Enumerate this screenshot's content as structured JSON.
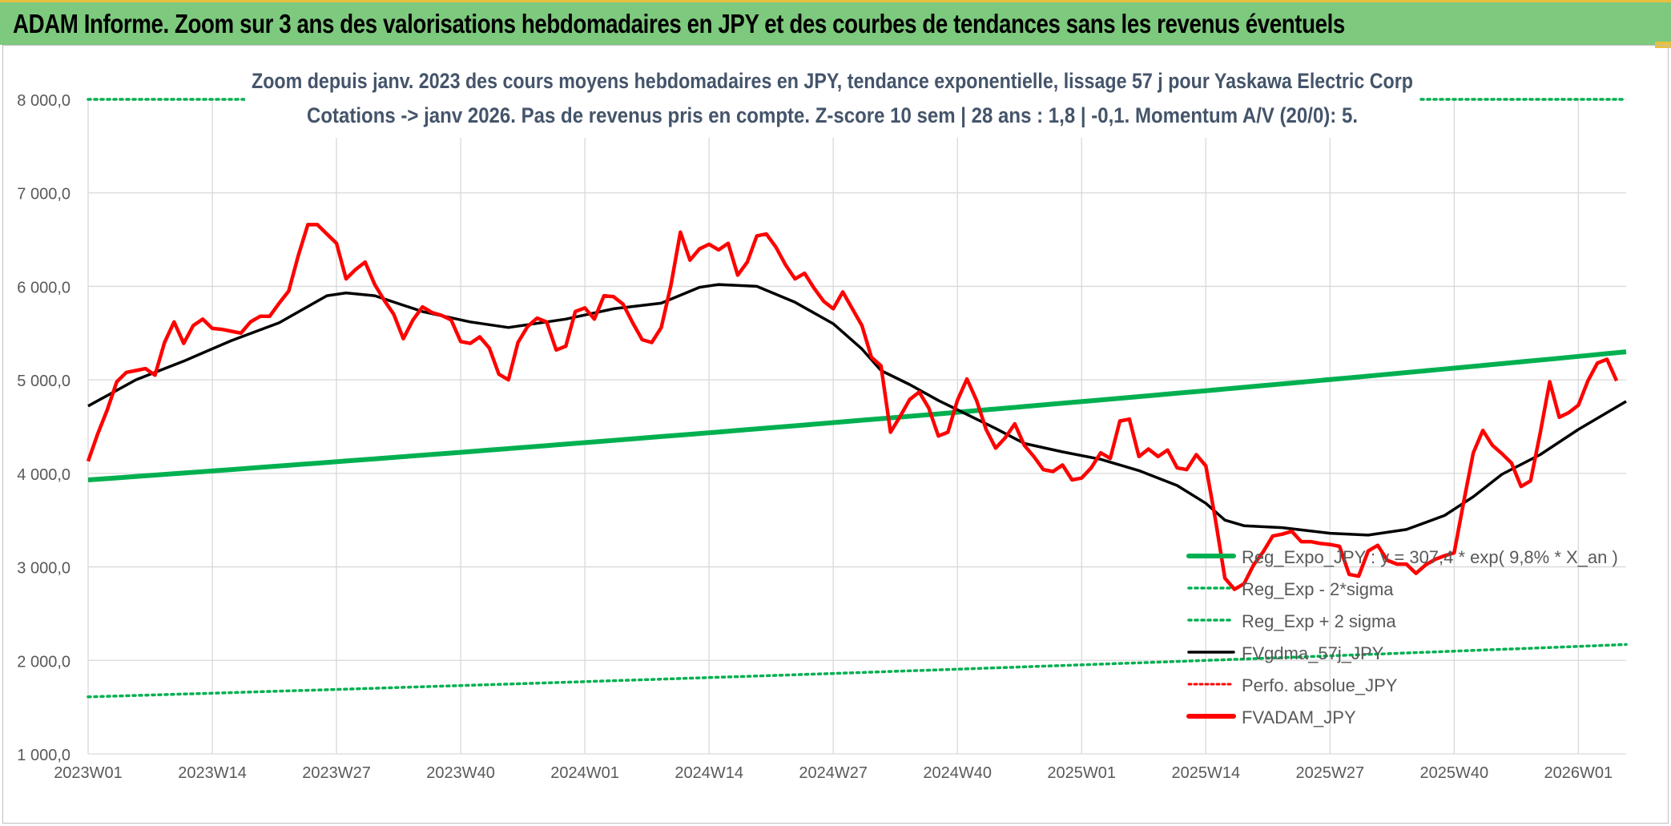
{
  "header": {
    "title": "ADAM Informe. Zoom sur 3 ans des valorisations hebdomadaires en JPY et des courbes de tendances sans les revenus éventuels"
  },
  "colors": {
    "header_bg": "#7dc97d",
    "regression": "#00b050",
    "sigma": "#00b050",
    "fv": "#000000",
    "perfo": "#ff0000",
    "price": "#ff0000"
  },
  "chart_data": {
    "type": "line",
    "title": "Zoom depuis janv. 2023 des cours moyens hebdomadaires en JPY, tendance exponentielle, lissage 57 j pour Yaskawa Electric Corp",
    "subtitle": "Cotations -> janv 2026. Pas de revenus pris en compte. Z-score 10 sem | 28 ans : 1,8 | -0,1. Momentum A/V (20/0): 5.",
    "ylim": [
      1000,
      8000
    ],
    "y_ticks": [
      1000,
      2000,
      3000,
      4000,
      5000,
      6000,
      7000,
      8000
    ],
    "y_tick_labels": [
      "1 000,0",
      "2 000,0",
      "3 000,0",
      "4 000,0",
      "5 000,0",
      "6 000,0",
      "7 000,0",
      "8 000,0"
    ],
    "x_count": 162,
    "x_tick_labels": [
      {
        "index": 0,
        "label": "2023W01"
      },
      {
        "index": 13,
        "label": "2023W14"
      },
      {
        "index": 26,
        "label": "2023W27"
      },
      {
        "index": 39,
        "label": "2023W40"
      },
      {
        "index": 52,
        "label": "2024W01"
      },
      {
        "index": 65,
        "label": "2024W14"
      },
      {
        "index": 78,
        "label": "2024W27"
      },
      {
        "index": 91,
        "label": "2024W40"
      },
      {
        "index": 104,
        "label": "2025W01"
      },
      {
        "index": 117,
        "label": "2025W14"
      },
      {
        "index": 130,
        "label": "2025W27"
      },
      {
        "index": 143,
        "label": "2025W40"
      },
      {
        "index": 156,
        "label": "2026W01"
      }
    ],
    "legend": [
      {
        "key": "reg",
        "label": "Reg_Expo_JPY : y = 307,4 * exp( 9,8% *  X_an )",
        "style": "thick"
      },
      {
        "key": "minus",
        "label": "Reg_Exp - 2*sigma",
        "style": "dotted"
      },
      {
        "key": "plus",
        "label": "Reg_Exp + 2 sigma",
        "style": "dotted"
      },
      {
        "key": "fv",
        "label": "FVgdma_57j_JPY",
        "style": "solid"
      },
      {
        "key": "perfo",
        "label": "Perfo. absolue_JPY",
        "style": "dotted"
      },
      {
        "key": "price",
        "label": "FVADAM_JPY",
        "style": "thick"
      }
    ],
    "series": [
      {
        "key": "reg",
        "name": "Reg_Expo_JPY",
        "start": 3930,
        "end": 5300
      },
      {
        "key": "minus",
        "name": "Reg_Exp - 2*sigma",
        "start": 1610,
        "end": 2170
      },
      {
        "key": "plus",
        "name": "Reg_Exp + 2 sigma",
        "start": 8000,
        "end": 8000
      },
      {
        "key": "fv",
        "name": "FVgdma_57j_JPY",
        "points": [
          [
            0,
            4720
          ],
          [
            5,
            5000
          ],
          [
            10,
            5200
          ],
          [
            15,
            5420
          ],
          [
            20,
            5610
          ],
          [
            25,
            5900
          ],
          [
            27,
            5930
          ],
          [
            30,
            5900
          ],
          [
            35,
            5730
          ],
          [
            40,
            5620
          ],
          [
            44,
            5560
          ],
          [
            50,
            5650
          ],
          [
            55,
            5760
          ],
          [
            60,
            5820
          ],
          [
            64,
            5990
          ],
          [
            66,
            6020
          ],
          [
            70,
            6000
          ],
          [
            74,
            5830
          ],
          [
            78,
            5600
          ],
          [
            81,
            5330
          ],
          [
            83,
            5100
          ],
          [
            86,
            4950
          ],
          [
            89,
            4780
          ],
          [
            92,
            4630
          ],
          [
            95,
            4480
          ],
          [
            98,
            4320
          ],
          [
            102,
            4230
          ],
          [
            106,
            4150
          ],
          [
            110,
            4030
          ],
          [
            114,
            3870
          ],
          [
            117,
            3680
          ],
          [
            119,
            3500
          ],
          [
            121,
            3440
          ],
          [
            125,
            3420
          ],
          [
            130,
            3360
          ],
          [
            134,
            3340
          ],
          [
            138,
            3400
          ],
          [
            142,
            3550
          ],
          [
            145,
            3750
          ],
          [
            148,
            3990
          ],
          [
            152,
            4200
          ],
          [
            156,
            4470
          ],
          [
            159,
            4650
          ],
          [
            161,
            4770
          ]
        ]
      },
      {
        "key": "price",
        "name": "FVADAM_JPY",
        "points": [
          [
            0,
            4130
          ],
          [
            1,
            4420
          ],
          [
            2,
            4680
          ],
          [
            3,
            4980
          ],
          [
            4,
            5080
          ],
          [
            5,
            5100
          ],
          [
            6,
            5120
          ],
          [
            7,
            5050
          ],
          [
            8,
            5400
          ],
          [
            9,
            5620
          ],
          [
            10,
            5390
          ],
          [
            11,
            5580
          ],
          [
            12,
            5650
          ],
          [
            13,
            5550
          ],
          [
            14,
            5540
          ],
          [
            15,
            5520
          ],
          [
            16,
            5500
          ],
          [
            17,
            5620
          ],
          [
            18,
            5680
          ],
          [
            19,
            5680
          ],
          [
            20,
            5820
          ],
          [
            21,
            5950
          ],
          [
            22,
            6330
          ],
          [
            23,
            6660
          ],
          [
            24,
            6660
          ],
          [
            25,
            6560
          ],
          [
            26,
            6460
          ],
          [
            27,
            6080
          ],
          [
            28,
            6180
          ],
          [
            29,
            6260
          ],
          [
            30,
            6020
          ],
          [
            31,
            5850
          ],
          [
            32,
            5700
          ],
          [
            33,
            5440
          ],
          [
            34,
            5640
          ],
          [
            35,
            5780
          ],
          [
            36,
            5720
          ],
          [
            37,
            5690
          ],
          [
            38,
            5640
          ],
          [
            39,
            5410
          ],
          [
            40,
            5390
          ],
          [
            41,
            5460
          ],
          [
            42,
            5340
          ],
          [
            43,
            5060
          ],
          [
            44,
            5000
          ],
          [
            45,
            5400
          ],
          [
            46,
            5570
          ],
          [
            47,
            5660
          ],
          [
            48,
            5620
          ],
          [
            49,
            5320
          ],
          [
            50,
            5360
          ],
          [
            51,
            5730
          ],
          [
            52,
            5770
          ],
          [
            53,
            5650
          ],
          [
            54,
            5900
          ],
          [
            55,
            5890
          ],
          [
            56,
            5810
          ],
          [
            57,
            5610
          ],
          [
            58,
            5430
          ],
          [
            59,
            5400
          ],
          [
            60,
            5560
          ],
          [
            61,
            6010
          ],
          [
            62,
            6580
          ],
          [
            63,
            6280
          ],
          [
            64,
            6400
          ],
          [
            65,
            6450
          ],
          [
            66,
            6390
          ],
          [
            67,
            6460
          ],
          [
            68,
            6120
          ],
          [
            69,
            6260
          ],
          [
            70,
            6540
          ],
          [
            71,
            6560
          ],
          [
            72,
            6420
          ],
          [
            73,
            6230
          ],
          [
            74,
            6080
          ],
          [
            75,
            6140
          ],
          [
            76,
            5980
          ],
          [
            77,
            5840
          ],
          [
            78,
            5760
          ],
          [
            79,
            5940
          ],
          [
            80,
            5760
          ],
          [
            81,
            5580
          ],
          [
            82,
            5240
          ],
          [
            83,
            5150
          ],
          [
            84,
            4440
          ],
          [
            85,
            4610
          ],
          [
            86,
            4790
          ],
          [
            87,
            4870
          ],
          [
            88,
            4700
          ],
          [
            89,
            4400
          ],
          [
            90,
            4440
          ],
          [
            91,
            4780
          ],
          [
            92,
            5010
          ],
          [
            93,
            4780
          ],
          [
            94,
            4470
          ],
          [
            95,
            4270
          ],
          [
            96,
            4380
          ],
          [
            97,
            4530
          ],
          [
            98,
            4300
          ],
          [
            99,
            4180
          ],
          [
            100,
            4040
          ],
          [
            101,
            4020
          ],
          [
            102,
            4090
          ],
          [
            103,
            3930
          ],
          [
            104,
            3950
          ],
          [
            105,
            4060
          ],
          [
            106,
            4220
          ],
          [
            107,
            4160
          ],
          [
            108,
            4560
          ],
          [
            109,
            4580
          ],
          [
            110,
            4180
          ],
          [
            111,
            4260
          ],
          [
            112,
            4180
          ],
          [
            113,
            4250
          ],
          [
            114,
            4060
          ],
          [
            115,
            4040
          ],
          [
            116,
            4200
          ],
          [
            117,
            4080
          ],
          [
            118,
            3510
          ],
          [
            119,
            2880
          ],
          [
            120,
            2760
          ],
          [
            121,
            2820
          ],
          [
            122,
            3020
          ],
          [
            123,
            3160
          ],
          [
            124,
            3330
          ],
          [
            125,
            3350
          ],
          [
            126,
            3380
          ],
          [
            127,
            3270
          ],
          [
            128,
            3270
          ],
          [
            129,
            3250
          ],
          [
            130,
            3240
          ],
          [
            131,
            3220
          ],
          [
            132,
            2920
          ],
          [
            133,
            2900
          ],
          [
            134,
            3170
          ],
          [
            135,
            3230
          ],
          [
            136,
            3070
          ],
          [
            137,
            3030
          ],
          [
            138,
            3030
          ],
          [
            139,
            2930
          ],
          [
            140,
            3020
          ],
          [
            141,
            3080
          ],
          [
            142,
            3120
          ],
          [
            143,
            3150
          ],
          [
            144,
            3700
          ],
          [
            145,
            4220
          ],
          [
            146,
            4460
          ],
          [
            147,
            4300
          ],
          [
            148,
            4210
          ],
          [
            149,
            4110
          ],
          [
            150,
            3860
          ],
          [
            151,
            3920
          ],
          [
            152,
            4430
          ],
          [
            153,
            4980
          ],
          [
            154,
            4600
          ],
          [
            155,
            4650
          ],
          [
            156,
            4730
          ],
          [
            157,
            4990
          ],
          [
            158,
            5180
          ],
          [
            159,
            5220
          ],
          [
            160,
            4990
          ]
        ]
      }
    ]
  }
}
